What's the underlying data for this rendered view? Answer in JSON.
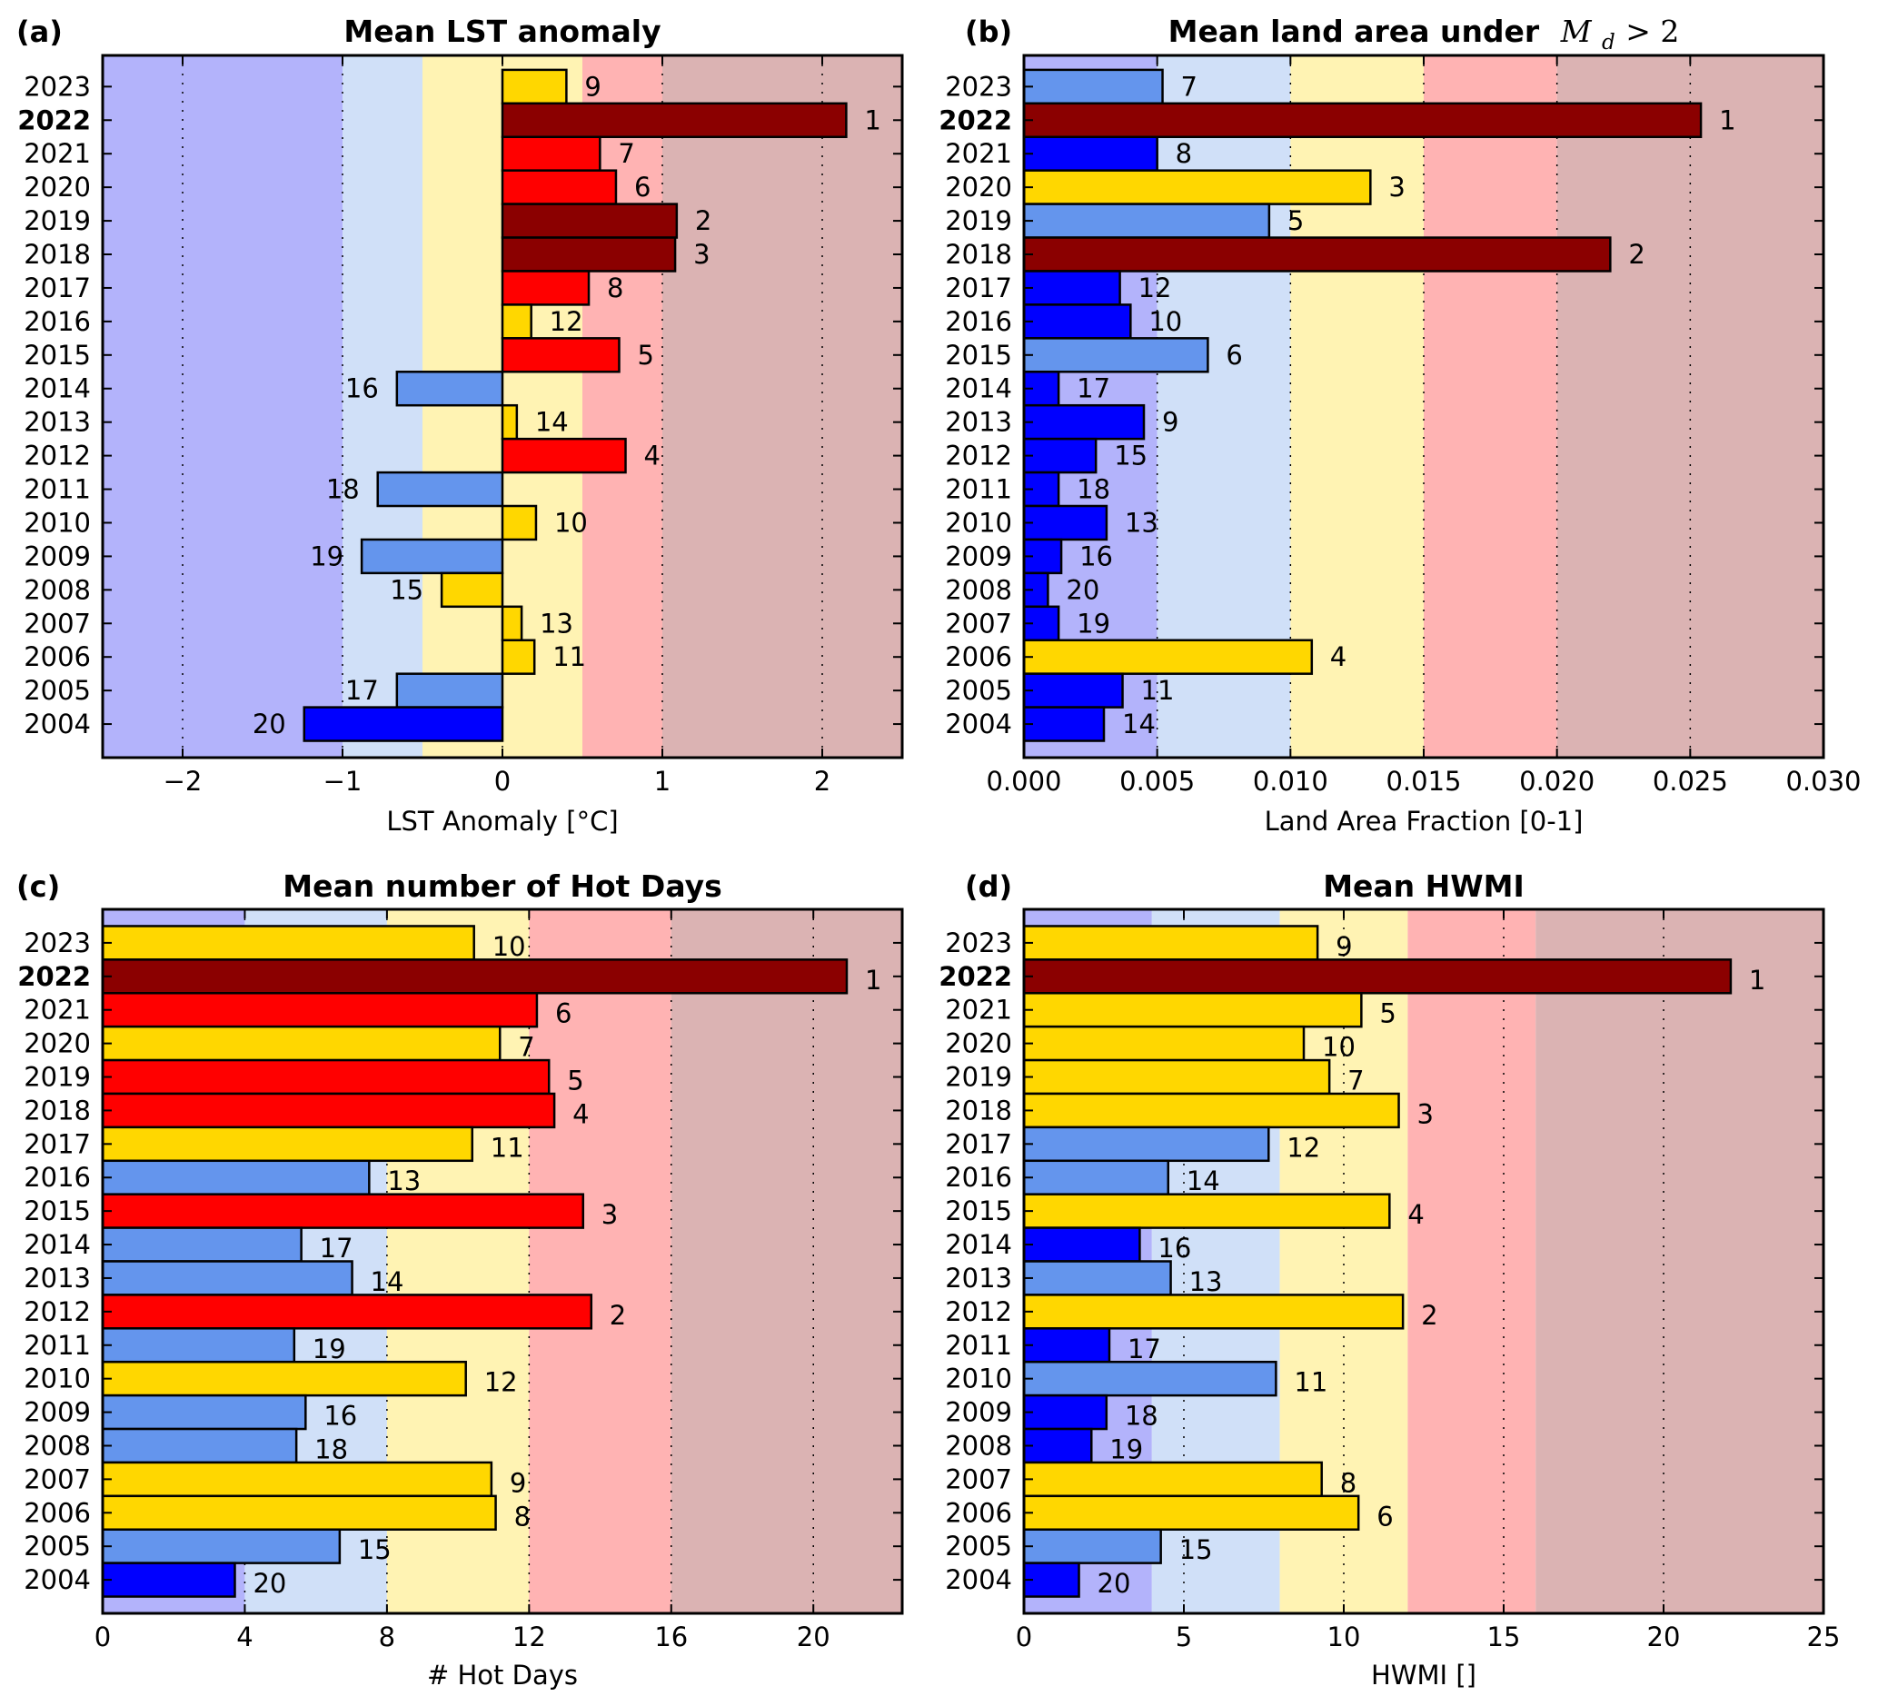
{
  "colors": {
    "band_lavender": "#b3b3fb",
    "band_lightblue": "#d0e0f8",
    "band_yellow": "#fff3b3",
    "band_pink": "#ffb3b3",
    "band_rose": "#dbb3b3",
    "bar_gold": "#ffd700",
    "bar_darkred": "#8b0000",
    "bar_red": "#ff0000",
    "bar_cornflower": "#6495ed",
    "bar_blue": "#0000ff",
    "highlight_year": "#ff0000"
  },
  "chart_data": [
    {
      "panel": "(a)",
      "type": "bar",
      "orientation": "horizontal",
      "title": "Mean LST anomaly",
      "xlabel": "LST Anomaly [°C]",
      "ylabel": "",
      "xlim": [
        -2.5,
        2.5
      ],
      "ylim": [
        2003.0,
        2023.93
      ],
      "xticks": [
        -2,
        -1,
        0,
        1,
        2
      ],
      "xtick_labels": [
        "−2",
        "−1",
        "0",
        "1",
        "2"
      ],
      "grid": "x dotted",
      "highlight_year": "2022",
      "categories": [
        "2023",
        "2022",
        "2021",
        "2020",
        "2019",
        "2018",
        "2017",
        "2016",
        "2015",
        "2014",
        "2013",
        "2012",
        "2011",
        "2010",
        "2009",
        "2008",
        "2007",
        "2006",
        "2005",
        "2004"
      ],
      "values": [
        0.4,
        2.15,
        0.61,
        0.71,
        1.09,
        1.08,
        0.54,
        0.18,
        0.73,
        -0.66,
        0.09,
        0.77,
        -0.78,
        0.21,
        -0.88,
        -0.38,
        0.12,
        0.2,
        -0.66,
        -1.24
      ],
      "ranks": [
        9,
        1,
        7,
        6,
        2,
        3,
        8,
        12,
        5,
        16,
        14,
        4,
        18,
        10,
        19,
        15,
        13,
        11,
        17,
        20
      ],
      "bar_colors": [
        "#ffd700",
        "#8b0000",
        "#ff0000",
        "#ff0000",
        "#8b0000",
        "#8b0000",
        "#ff0000",
        "#ffd700",
        "#ff0000",
        "#6495ed",
        "#ffd700",
        "#ff0000",
        "#6495ed",
        "#ffd700",
        "#6495ed",
        "#ffd700",
        "#ffd700",
        "#ffd700",
        "#6495ed",
        "#0000ff"
      ],
      "bands": [
        {
          "from": -2.5,
          "to": -1.0,
          "color": "#b3b3fb"
        },
        {
          "from": -1.0,
          "to": -0.5,
          "color": "#d0e0f8"
        },
        {
          "from": -0.5,
          "to": 0.5,
          "color": "#fff3b3"
        },
        {
          "from": 0.5,
          "to": 1.0,
          "color": "#ffb3b3"
        },
        {
          "from": 1.0,
          "to": 2.5,
          "color": "#dbb3b3"
        }
      ]
    },
    {
      "panel": "(b)",
      "type": "bar",
      "orientation": "horizontal",
      "title": "Mean land area under",
      "title_math": {
        "symbol": "M",
        "subscript": "d",
        "relation": " > 2"
      },
      "xlabel": "Land Area Fraction [0-1]",
      "ylabel": "",
      "xlim": [
        0.0,
        0.03
      ],
      "ylim": [
        2003.0,
        2023.93
      ],
      "xticks": [
        0.0,
        0.005,
        0.01,
        0.015,
        0.02,
        0.025,
        0.03
      ],
      "xtick_labels": [
        "0.000",
        "0.005",
        "0.010",
        "0.015",
        "0.020",
        "0.025",
        "0.030"
      ],
      "grid": "x dotted",
      "highlight_year": "2022",
      "categories": [
        "2023",
        "2022",
        "2021",
        "2020",
        "2019",
        "2018",
        "2017",
        "2016",
        "2015",
        "2014",
        "2013",
        "2012",
        "2011",
        "2010",
        "2009",
        "2008",
        "2007",
        "2006",
        "2005",
        "2004"
      ],
      "values": [
        0.0052,
        0.0254,
        0.005,
        0.013,
        0.0092,
        0.022,
        0.0036,
        0.004,
        0.0069,
        0.0013,
        0.0045,
        0.0027,
        0.0013,
        0.0031,
        0.0014,
        0.0009,
        0.0013,
        0.0108,
        0.0037,
        0.003
      ],
      "ranks": [
        7,
        1,
        8,
        3,
        5,
        2,
        12,
        10,
        6,
        17,
        9,
        15,
        18,
        13,
        16,
        20,
        19,
        4,
        11,
        14
      ],
      "bar_colors": [
        "#6495ed",
        "#8b0000",
        "#0000ff",
        "#ffd700",
        "#6495ed",
        "#8b0000",
        "#0000ff",
        "#0000ff",
        "#6495ed",
        "#0000ff",
        "#0000ff",
        "#0000ff",
        "#0000ff",
        "#0000ff",
        "#0000ff",
        "#0000ff",
        "#0000ff",
        "#ffd700",
        "#0000ff",
        "#0000ff"
      ],
      "bands": [
        {
          "from": 0.0,
          "to": 0.005,
          "color": "#b3b3fb"
        },
        {
          "from": 0.005,
          "to": 0.01,
          "color": "#d0e0f8"
        },
        {
          "from": 0.01,
          "to": 0.015,
          "color": "#fff3b3"
        },
        {
          "from": 0.015,
          "to": 0.02,
          "color": "#ffb3b3"
        },
        {
          "from": 0.02,
          "to": 0.03,
          "color": "#dbb3b3"
        }
      ]
    },
    {
      "panel": "(c)",
      "type": "bar",
      "orientation": "horizontal",
      "title": "Mean number of Hot Days",
      "xlabel": "# Hot Days",
      "ylabel": "",
      "xlim": [
        0,
        22.5
      ],
      "ylim": [
        2003.0,
        2024.0
      ],
      "xticks": [
        0,
        4,
        8,
        12,
        16,
        20
      ],
      "xtick_labels": [
        "0",
        "4",
        "8",
        "12",
        "16",
        "20"
      ],
      "grid": "x dotted",
      "highlight_year": "2022",
      "categories": [
        "2023",
        "2022",
        "2021",
        "2020",
        "2019",
        "2018",
        "2017",
        "2016",
        "2015",
        "2014",
        "2013",
        "2012",
        "2011",
        "2010",
        "2009",
        "2008",
        "2007",
        "2006",
        "2005",
        "2004"
      ],
      "values": [
        10.45,
        20.94,
        12.22,
        11.18,
        12.56,
        12.71,
        10.4,
        7.5,
        13.52,
        5.59,
        7.02,
        13.75,
        5.39,
        10.22,
        5.71,
        5.45,
        10.94,
        11.06,
        6.67,
        3.72
      ],
      "ranks": [
        10,
        1,
        6,
        7,
        5,
        4,
        11,
        13,
        3,
        17,
        14,
        2,
        19,
        12,
        16,
        18,
        9,
        8,
        15,
        20
      ],
      "bar_colors": [
        "#ffd700",
        "#8b0000",
        "#ff0000",
        "#ffd700",
        "#ff0000",
        "#ff0000",
        "#ffd700",
        "#6495ed",
        "#ff0000",
        "#6495ed",
        "#6495ed",
        "#ff0000",
        "#6495ed",
        "#ffd700",
        "#6495ed",
        "#6495ed",
        "#ffd700",
        "#ffd700",
        "#6495ed",
        "#0000ff"
      ],
      "bands": [
        {
          "from": 0,
          "to": 4,
          "color": "#b3b3fb"
        },
        {
          "from": 4,
          "to": 8,
          "color": "#d0e0f8"
        },
        {
          "from": 8,
          "to": 12,
          "color": "#fff3b3"
        },
        {
          "from": 12,
          "to": 16,
          "color": "#ffb3b3"
        },
        {
          "from": 16,
          "to": 22.5,
          "color": "#dbb3b3"
        }
      ]
    },
    {
      "panel": "(d)",
      "type": "bar",
      "orientation": "horizontal",
      "title": "Mean HWMI",
      "xlabel": "HWMI []",
      "ylabel": "",
      "xlim": [
        0,
        25
      ],
      "ylim": [
        2003.0,
        2024.0
      ],
      "xticks": [
        0,
        5,
        10,
        15,
        20,
        25
      ],
      "xtick_labels": [
        "0",
        "5",
        "10",
        "15",
        "20",
        "25"
      ],
      "grid": "x dotted",
      "highlight_year": "2022",
      "categories": [
        "2023",
        "2022",
        "2021",
        "2020",
        "2019",
        "2018",
        "2017",
        "2016",
        "2015",
        "2014",
        "2013",
        "2012",
        "2011",
        "2010",
        "2009",
        "2008",
        "2007",
        "2006",
        "2005",
        "2004"
      ],
      "values": [
        9.18,
        22.1,
        10.55,
        8.75,
        9.55,
        11.72,
        7.65,
        4.51,
        11.43,
        3.62,
        4.59,
        11.85,
        2.67,
        7.88,
        2.58,
        2.11,
        9.31,
        10.46,
        4.28,
        1.72
      ],
      "ranks": [
        9,
        1,
        5,
        10,
        7,
        3,
        12,
        14,
        4,
        16,
        13,
        2,
        17,
        11,
        18,
        19,
        8,
        6,
        15,
        20
      ],
      "bar_colors": [
        "#ffd700",
        "#8b0000",
        "#ffd700",
        "#ffd700",
        "#ffd700",
        "#ffd700",
        "#6495ed",
        "#6495ed",
        "#ffd700",
        "#0000ff",
        "#6495ed",
        "#ffd700",
        "#0000ff",
        "#6495ed",
        "#0000ff",
        "#0000ff",
        "#ffd700",
        "#ffd700",
        "#6495ed",
        "#0000ff"
      ],
      "bands": [
        {
          "from": 0,
          "to": 4,
          "color": "#b3b3fb"
        },
        {
          "from": 4,
          "to": 8,
          "color": "#d0e0f8"
        },
        {
          "from": 8,
          "to": 12,
          "color": "#fff3b3"
        },
        {
          "from": 12,
          "to": 16,
          "color": "#ffb3b3"
        },
        {
          "from": 16,
          "to": 25,
          "color": "#dbb3b3"
        }
      ]
    }
  ]
}
